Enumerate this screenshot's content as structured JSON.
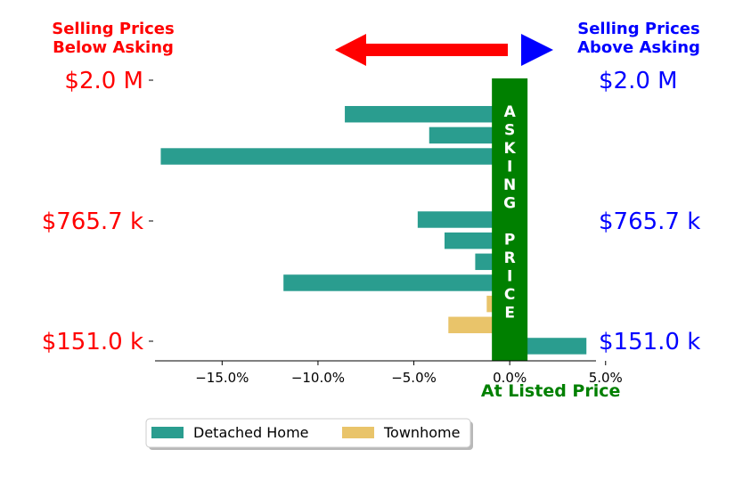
{
  "chart_data": {
    "type": "bar",
    "orientation": "horizontal",
    "title": "",
    "xlabel": "At Listed Price",
    "ylabel": "",
    "x_unit": "percent",
    "xlim": [
      -18.5,
      4.5
    ],
    "x_ticks": [
      -15,
      -10,
      -5,
      0,
      5
    ],
    "x_tick_labels": [
      "−15.0%",
      "−10.0%",
      "−5.0%",
      "0.0%",
      "5.0%"
    ],
    "y_tick_labels": [
      "$2.0 M",
      "$765.7 k",
      "$151.0 k"
    ],
    "left_header": [
      "Selling Prices",
      "Below Asking"
    ],
    "right_header": [
      "Selling Prices",
      "Above Asking"
    ],
    "center_band_label": "ASKING PRICE",
    "series": [
      {
        "name": "Detached Home",
        "color": "#2a9d8f"
      },
      {
        "name": "Townhome",
        "color": "#e9c46a"
      }
    ],
    "bars": [
      {
        "series": "Detached Home",
        "value": 0.6
      },
      {
        "series": "Detached Home",
        "value": -8.6
      },
      {
        "series": "Detached Home",
        "value": -4.2
      },
      {
        "series": "Detached Home",
        "value": -18.2
      },
      {
        "series": "Detached Home",
        "value": 0.6
      },
      {
        "series": "Detached Home",
        "value": 0.6
      },
      {
        "series": "Detached Home",
        "value": -4.8
      },
      {
        "series": "Detached Home",
        "value": -3.4
      },
      {
        "series": "Detached Home",
        "value": -1.8
      },
      {
        "series": "Detached Home",
        "value": -11.8
      },
      {
        "series": "Townhome",
        "value": -1.2
      },
      {
        "series": "Townhome",
        "value": -3.2
      },
      {
        "series": "Detached Home",
        "value": 4.0
      }
    ],
    "colors": {
      "left_text": "#ff0000",
      "right_text": "#0000ff",
      "band": "#008000",
      "xlabel": "#008000"
    },
    "grid": false,
    "legend_position": "bottom-left"
  }
}
